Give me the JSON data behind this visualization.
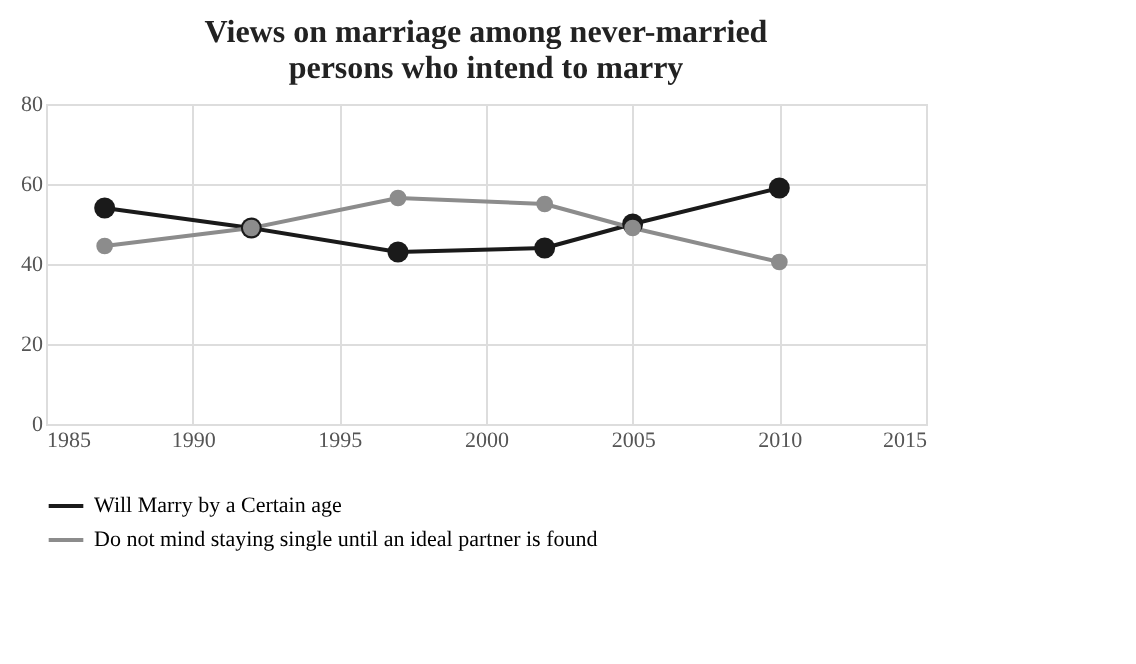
{
  "chart_data": {
    "type": "line",
    "title": "Views on marriage among never-married persons who intend to marry",
    "x": [
      1987,
      1992,
      1997,
      2002,
      2005,
      2010
    ],
    "series": [
      {
        "name": "Will Marry by a Certain age",
        "color": "#1a1a1a",
        "values": [
          54,
          49,
          43,
          44,
          50,
          59
        ]
      },
      {
        "name": "Do not mind staying single until an ideal partner is found",
        "color": "#8c8c8c",
        "values": [
          44.5,
          49,
          56.5,
          55,
          49,
          40.5
        ]
      }
    ],
    "xlim": [
      1985,
      2015
    ],
    "xticks": [
      1985,
      1990,
      1995,
      2000,
      2005,
      2010,
      2015
    ],
    "ylim": [
      0,
      80
    ],
    "yticks": [
      0,
      20,
      40,
      60,
      80
    ],
    "grid": true,
    "legend": "bottom",
    "marker": "circle",
    "line_style": "solid"
  }
}
